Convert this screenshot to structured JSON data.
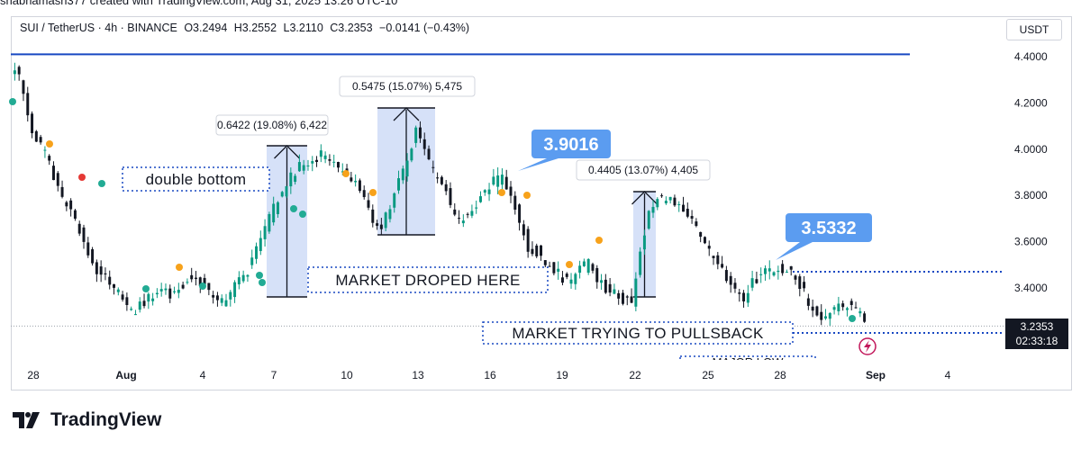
{
  "header_cut": "shabnamash377 created with TradingView.com, Aug 31, 2025 13:26 UTC-10",
  "legend": {
    "symbol": "SUI / TetherUS · 4h · BINANCE",
    "open": "O3.2494",
    "high": "H3.2552",
    "low": "L3.2110",
    "close": "C3.2353",
    "change": "−0.0141 (−0.43%)"
  },
  "currency": "USDT",
  "price_tag": {
    "price": "3.2353",
    "countdown": "02:33:18"
  },
  "brand": "TradingView",
  "colors": {
    "up": "#089981",
    "down": "#131722",
    "accent": "#1848c2",
    "box_fill": "#cfdcf7",
    "callout": "#5b9cf0"
  },
  "chart_data": {
    "type": "candlestick",
    "title": "SUI / TetherUS · 4h · BINANCE",
    "ylim": [
      3.17,
      4.52
    ],
    "yticks": [
      "4.4000",
      "4.2000",
      "4.0000",
      "3.8000",
      "3.6000",
      "3.4000"
    ],
    "xticks": [
      "28",
      "Aug",
      "4",
      "7",
      "10",
      "13",
      "16",
      "19",
      "22",
      "25",
      "28",
      "Sep",
      "4"
    ],
    "price_path": [
      [
        0,
        4.35
      ],
      [
        2,
        4.32
      ],
      [
        5,
        4.08
      ],
      [
        8,
        3.98
      ],
      [
        11,
        3.82
      ],
      [
        14,
        3.72
      ],
      [
        17,
        3.6
      ],
      [
        20,
        3.48
      ],
      [
        23,
        3.42
      ],
      [
        26,
        3.36
      ],
      [
        28,
        3.3
      ],
      [
        31,
        3.33
      ],
      [
        34,
        3.4
      ],
      [
        37,
        3.36
      ],
      [
        40,
        3.42
      ],
      [
        43,
        3.46
      ],
      [
        46,
        3.38
      ],
      [
        49,
        3.34
      ],
      [
        52,
        3.4
      ],
      [
        55,
        3.48
      ],
      [
        58,
        3.62
      ],
      [
        61,
        3.74
      ],
      [
        64,
        3.86
      ],
      [
        67,
        3.92
      ],
      [
        70,
        3.96
      ],
      [
        73,
        3.98
      ],
      [
        76,
        3.92
      ],
      [
        79,
        3.88
      ],
      [
        82,
        3.8
      ],
      [
        84,
        3.7
      ],
      [
        86,
        3.66
      ],
      [
        88,
        3.75
      ],
      [
        90,
        3.85
      ],
      [
        92,
        3.95
      ],
      [
        94,
        4.08
      ],
      [
        96,
        3.98
      ],
      [
        98,
        3.9
      ],
      [
        100,
        3.86
      ],
      [
        102,
        3.76
      ],
      [
        104,
        3.68
      ],
      [
        106,
        3.72
      ],
      [
        108,
        3.76
      ],
      [
        110,
        3.82
      ],
      [
        112,
        3.86
      ],
      [
        114,
        3.88
      ],
      [
        116,
        3.8
      ],
      [
        118,
        3.68
      ],
      [
        120,
        3.58
      ],
      [
        122,
        3.56
      ],
      [
        124,
        3.52
      ],
      [
        126,
        3.48
      ],
      [
        128,
        3.44
      ],
      [
        130,
        3.42
      ],
      [
        132,
        3.48
      ],
      [
        134,
        3.5
      ],
      [
        136,
        3.44
      ],
      [
        138,
        3.4
      ],
      [
        140,
        3.38
      ],
      [
        142,
        3.35
      ],
      [
        144,
        3.34
      ],
      [
        146,
        3.55
      ],
      [
        148,
        3.72
      ],
      [
        150,
        3.78
      ],
      [
        152,
        3.8
      ],
      [
        154,
        3.76
      ],
      [
        156,
        3.72
      ],
      [
        158,
        3.7
      ],
      [
        160,
        3.6
      ],
      [
        162,
        3.56
      ],
      [
        164,
        3.52
      ],
      [
        166,
        3.44
      ],
      [
        168,
        3.38
      ],
      [
        170,
        3.36
      ],
      [
        172,
        3.42
      ],
      [
        174,
        3.46
      ],
      [
        176,
        3.47
      ],
      [
        178,
        3.48
      ],
      [
        180,
        3.47
      ],
      [
        182,
        3.44
      ],
      [
        184,
        3.38
      ],
      [
        186,
        3.3
      ],
      [
        188,
        3.27
      ],
      [
        190,
        3.3
      ],
      [
        192,
        3.33
      ],
      [
        194,
        3.32
      ],
      [
        196,
        3.3
      ],
      [
        198,
        3.25
      ]
    ],
    "levels": [
      {
        "name": "top-resistance",
        "price": 4.41
      },
      {
        "name": "mid-resistance",
        "price": 3.47
      },
      {
        "name": "current",
        "price": 3.235
      }
    ],
    "measures": [
      {
        "label": "0.6422 (19.08%) 6,422"
      },
      {
        "label": "0.5475 (15.07%) 5,475"
      },
      {
        "label": "0.4405 (13.07%) 4,405"
      }
    ],
    "callouts": [
      "3.9016",
      "3.5332"
    ],
    "annotations": [
      "double bottom",
      "MARKET DROPED HERE",
      "MARKET TRYING TO PULLSBACK",
      "MAJOR LOW"
    ]
  }
}
